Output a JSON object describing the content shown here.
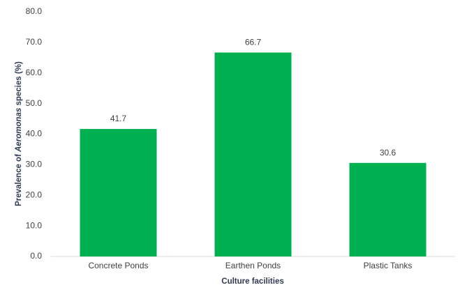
{
  "chart_data": {
    "type": "bar",
    "ylabel": [
      "Prevalence  of ",
      "Aeromonas",
      " species (%)"
    ],
    "xlabel": "Culture facilities",
    "categories": [
      "Concrete Ponds",
      "Earthen Ponds",
      "Plastic Tanks"
    ],
    "values": [
      41.7,
      66.7,
      30.6
    ],
    "color": "#00b050",
    "ylim": [
      0,
      80
    ],
    "yticks": [
      {
        "value": 0,
        "label": "0.0"
      },
      {
        "value": 10,
        "label": "10.0"
      },
      {
        "value": 20,
        "label": "20.0"
      },
      {
        "value": 30,
        "label": "30.0"
      },
      {
        "value": 40,
        "label": "40.0"
      },
      {
        "value": 50,
        "label": "50.0"
      },
      {
        "value": 60,
        "label": "60.0"
      },
      {
        "value": 70,
        "label": "70.0"
      },
      {
        "value": 80,
        "label": "80.0"
      }
    ],
    "grid": false
  }
}
